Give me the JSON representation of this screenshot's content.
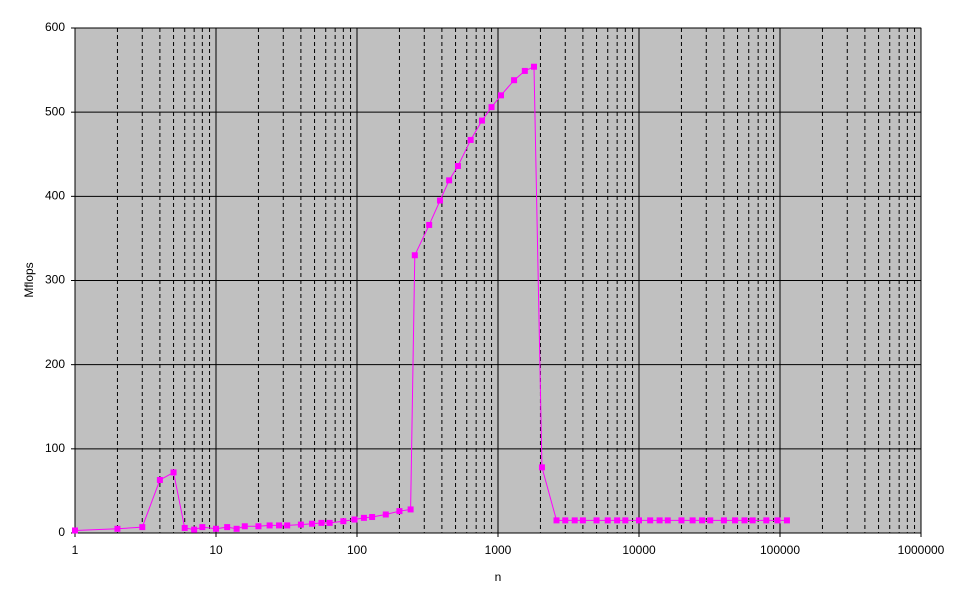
{
  "chart_data": {
    "type": "line",
    "x_label": "n",
    "y_label": "Mflops",
    "x": [
      1,
      2,
      3,
      4,
      5,
      6,
      7,
      8,
      10,
      12,
      14,
      16,
      20,
      24,
      28,
      32,
      40,
      48,
      56,
      64,
      80,
      96,
      112,
      128,
      160,
      200,
      240,
      257,
      325,
      388,
      450,
      520,
      640,
      770,
      900,
      1050,
      1300,
      1550,
      1800,
      2050,
      2600,
      3000,
      3500,
      4000,
      5000,
      6000,
      7000,
      8000,
      10000,
      12000,
      14000,
      16000,
      20000,
      24000,
      28000,
      32000,
      40000,
      48000,
      56000,
      64000,
      80000,
      96000,
      112000
    ],
    "values": [
      3,
      5,
      7,
      63,
      72,
      6,
      4,
      7,
      5,
      7,
      5,
      8,
      8,
      9,
      9,
      9,
      10,
      11,
      12,
      12,
      14,
      16,
      18,
      19,
      22,
      26,
      28,
      330,
      366,
      395,
      419,
      436,
      467,
      490,
      506,
      520,
      538,
      549,
      554,
      78,
      15,
      15,
      15,
      15,
      15,
      15,
      15,
      15,
      15,
      15,
      15,
      15,
      15,
      15,
      15,
      15,
      15,
      15,
      15,
      15,
      15,
      15,
      15
    ],
    "color": "#ff00ff",
    "log_x": true,
    "xlim": [
      1,
      1000000
    ],
    "xticks": [
      1,
      10,
      100,
      1000,
      10000,
      100000,
      1000000
    ],
    "ylim": [
      0,
      600
    ],
    "yticks": [
      0,
      100,
      200,
      300,
      400,
      500,
      600
    ],
    "grid": true
  }
}
